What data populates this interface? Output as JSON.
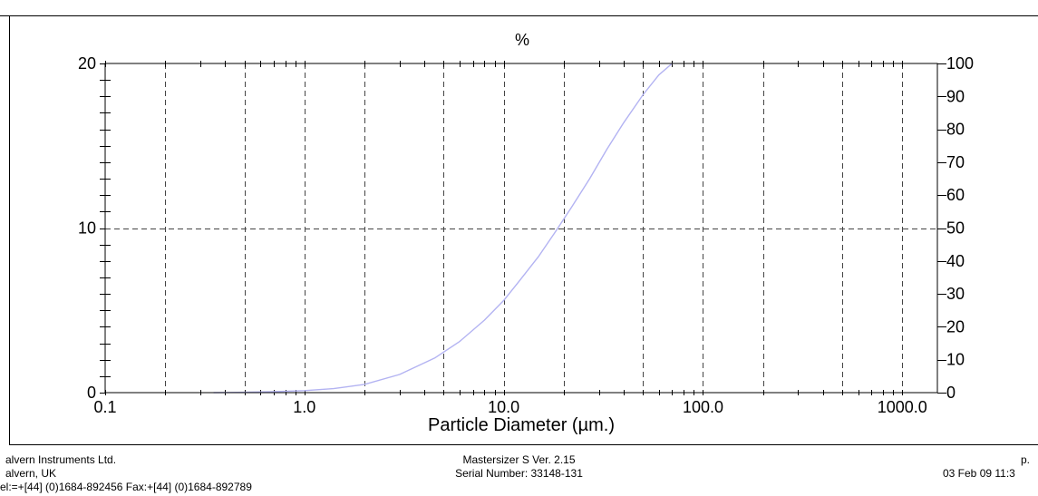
{
  "chart_data": {
    "type": "line",
    "title": "%",
    "xlabel": "Particle Diameter (µm.)",
    "ylabel": "",
    "x_scale": "log",
    "xlim": [
      0.1,
      1500
    ],
    "ylim_left": [
      0,
      20
    ],
    "ylim_right": [
      0,
      100
    ],
    "x_tick_labels": [
      "0.1",
      "1.0",
      "10.0",
      "100.0",
      "1000.0"
    ],
    "x_tick_values": [
      0.1,
      1,
      10,
      100,
      1000
    ],
    "y_left_tick_labels": [
      "0",
      "10",
      "20"
    ],
    "y_left_tick_values": [
      0,
      10,
      20
    ],
    "y_right_tick_labels": [
      "0",
      "10",
      "20",
      "30",
      "40",
      "50",
      "60",
      "70",
      "80",
      "90",
      "100"
    ],
    "y_right_tick_values": [
      0,
      10,
      20,
      30,
      40,
      50,
      60,
      70,
      80,
      90,
      100
    ],
    "grid": true,
    "series": [
      {
        "axis": "right",
        "color": "#b3b3f2",
        "x": [
          0.35,
          0.5,
          0.7,
          1.0,
          1.4,
          2.0,
          3.0,
          4.5,
          6.0,
          8.0,
          10.0,
          12.0,
          15.0,
          18.0,
          22.0,
          27.0,
          33.0,
          40.0,
          50.0,
          60.0,
          70.0
        ],
        "y": [
          0,
          0.1,
          0.3,
          0.6,
          1.2,
          2.5,
          5.5,
          10.5,
          15.5,
          22,
          28,
          34,
          41.5,
          48.5,
          56.5,
          65,
          74,
          82,
          90.5,
          96.5,
          100
        ]
      }
    ]
  },
  "footer": {
    "company_lines": [
      "alvern Instruments Ltd.",
      "alvern, UK",
      "el:=+[44] (0)1684-892456 Fax:+[44] (0)1684-892789"
    ],
    "instrument_lines": [
      "Mastersizer S Ver. 2.15",
      "Serial Number:  33148-131"
    ],
    "page_label": "p.",
    "date": "03 Feb 09 11:3"
  }
}
